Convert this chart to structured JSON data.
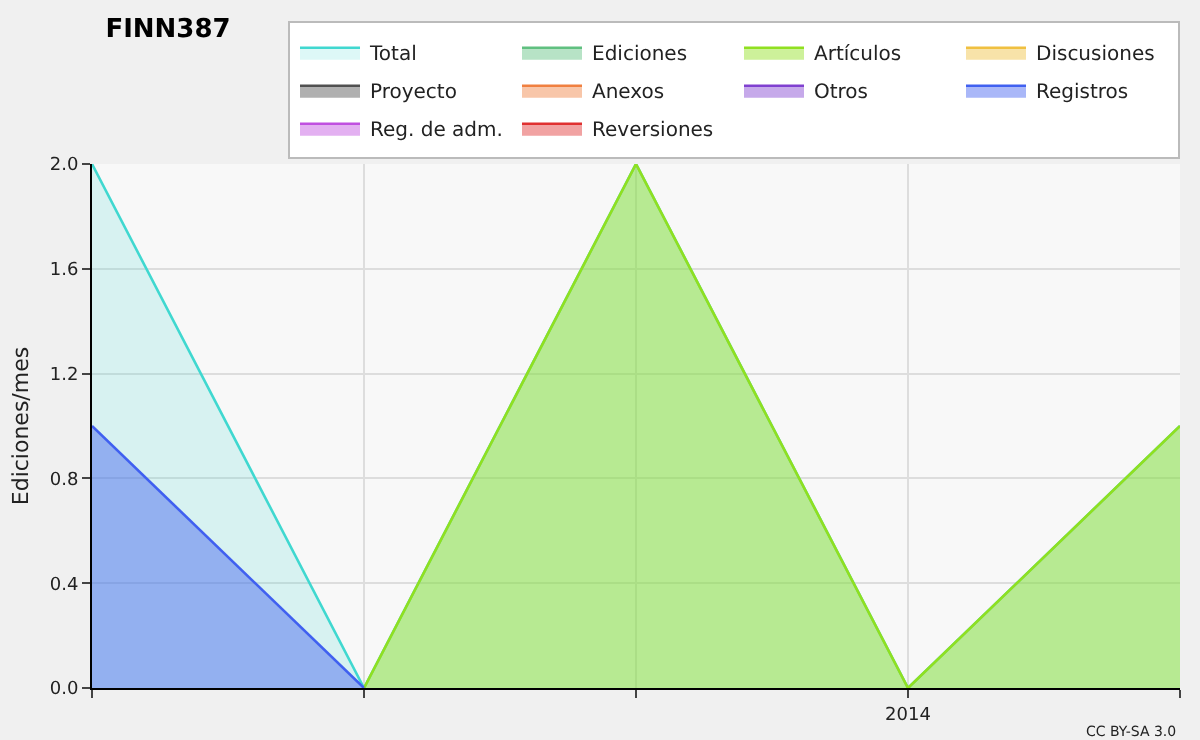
{
  "chart_data": {
    "type": "area",
    "title": "FINN387",
    "ylabel": "Ediciones/mes",
    "categories": [
      null,
      null,
      null,
      "2014",
      null
    ],
    "series": [
      {
        "name": "Total",
        "color": "#40d8d0",
        "values": [
          2,
          0,
          2,
          0,
          1
        ]
      },
      {
        "name": "Ediciones",
        "color": "#60c080",
        "values": [
          null,
          null,
          null,
          null,
          null
        ]
      },
      {
        "name": "Artículos",
        "color": "#90e020",
        "values": [
          null,
          0,
          2,
          0,
          1
        ]
      },
      {
        "name": "Discusiones",
        "color": "#f0c040",
        "values": [
          null,
          null,
          null,
          null,
          null
        ]
      },
      {
        "name": "Proyecto",
        "color": "#505050",
        "values": [
          null,
          null,
          null,
          null,
          null
        ]
      },
      {
        "name": "Anexos",
        "color": "#f08040",
        "values": [
          null,
          null,
          null,
          null,
          null
        ]
      },
      {
        "name": "Otros",
        "color": "#8040d0",
        "values": [
          null,
          null,
          null,
          null,
          null
        ]
      },
      {
        "name": "Registros",
        "color": "#4060f0",
        "values": [
          1,
          0,
          null,
          null,
          null
        ]
      },
      {
        "name": "Reg. de adm.",
        "color": "#c050e0",
        "values": [
          null,
          null,
          null,
          null,
          null
        ]
      },
      {
        "name": "Reversiones",
        "color": "#e03030",
        "values": [
          null,
          null,
          null,
          null,
          null
        ]
      }
    ],
    "ylim": [
      0,
      2
    ],
    "yticks": [
      {
        "value": 0,
        "label": "0.0"
      },
      {
        "value": 0.4,
        "label": "0.4"
      },
      {
        "value": 0.8,
        "label": "0.8"
      },
      {
        "value": 1.2,
        "label": "1.2"
      },
      {
        "value": 1.6,
        "label": "1.6"
      },
      {
        "value": 2,
        "label": "2.0"
      }
    ],
    "grid": true,
    "legend": "top right",
    "annotations": [
      "CC BY-SA 3.0"
    ]
  }
}
